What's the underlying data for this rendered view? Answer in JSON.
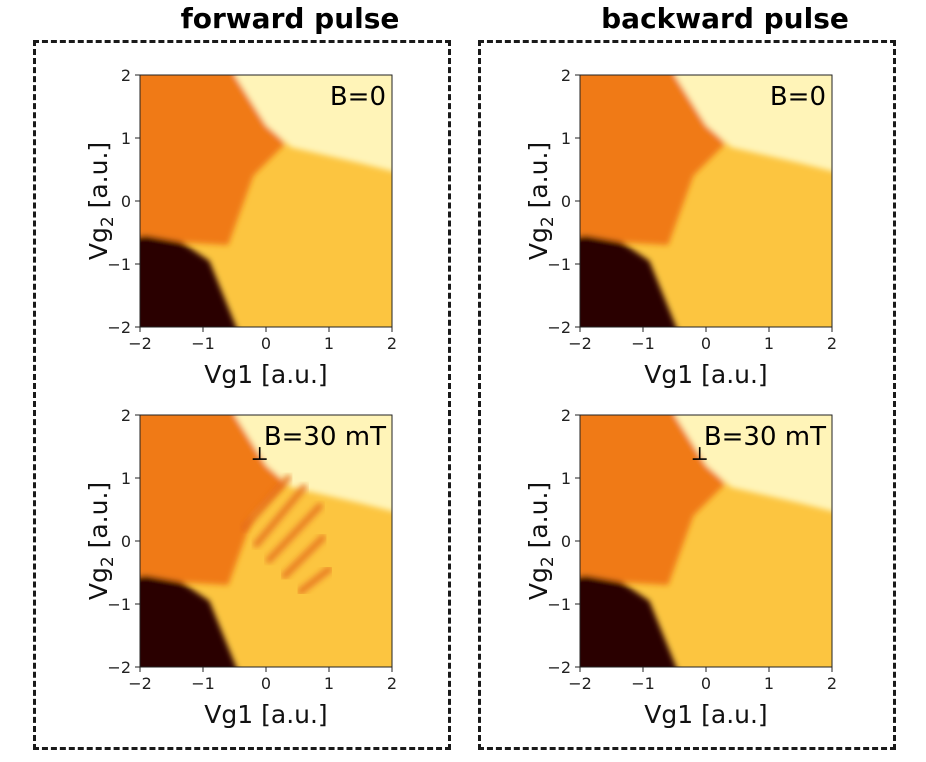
{
  "columns": [
    {
      "title": "forward pulse"
    },
    {
      "title": "backward pulse"
    }
  ],
  "chart_data": [
    {
      "type": "heatmap",
      "column": "forward pulse",
      "annotation": "B=0",
      "xlabel": "Vg1 [a.u.]",
      "ylabel_base": "Vg",
      "ylabel_sub": "2",
      "ylabel_unit": " [a.u.]",
      "xlim": [
        -2,
        2
      ],
      "ylim": [
        -2,
        2
      ],
      "xticks": [
        -2,
        -1,
        0,
        1,
        2
      ],
      "yticks": [
        -2,
        -1,
        0,
        1,
        2
      ],
      "colors": {
        "dark": "#2a0500",
        "orange": "#f07a14",
        "yellow": "#fcc540",
        "light": "#fff4b8"
      },
      "fringes": false
    },
    {
      "type": "heatmap",
      "column": "backward pulse",
      "annotation": "B=0",
      "xlabel": "Vg1 [a.u.]",
      "ylabel_base": "Vg",
      "ylabel_sub": "2",
      "ylabel_unit": " [a.u.]",
      "xlim": [
        -2,
        2
      ],
      "ylim": [
        -2,
        2
      ],
      "xticks": [
        -2,
        -1,
        0,
        1,
        2
      ],
      "yticks": [
        -2,
        -1,
        0,
        1,
        2
      ],
      "colors": {
        "dark": "#2a0500",
        "orange": "#f07a14",
        "yellow": "#fcc540",
        "light": "#fff4b8"
      },
      "fringes": false
    },
    {
      "type": "heatmap",
      "column": "forward pulse",
      "annotation": "B=30 mT",
      "xlabel": "Vg1 [a.u.]",
      "ylabel_base": "Vg",
      "ylabel_sub": "2",
      "ylabel_unit": " [a.u.]",
      "xlim": [
        -2,
        2
      ],
      "ylim": [
        -2,
        2
      ],
      "xticks": [
        -2,
        -1,
        0,
        1,
        2
      ],
      "yticks": [
        -2,
        -1,
        0,
        1,
        2
      ],
      "colors": {
        "dark": "#2a0500",
        "orange": "#f07a14",
        "yellow": "#fcc540",
        "light": "#fff4b8"
      },
      "fringes": true,
      "marker": {
        "x": -0.1,
        "y": 1.3
      }
    },
    {
      "type": "heatmap",
      "column": "backward pulse",
      "annotation": "B=30 mT",
      "xlabel": "Vg1 [a.u.]",
      "ylabel_base": "Vg",
      "ylabel_sub": "2",
      "ylabel_unit": " [a.u.]",
      "xlim": [
        -2,
        2
      ],
      "ylim": [
        -2,
        2
      ],
      "xticks": [
        -2,
        -1,
        0,
        1,
        2
      ],
      "yticks": [
        -2,
        -1,
        0,
        1,
        2
      ],
      "colors": {
        "dark": "#2a0500",
        "orange": "#f07a14",
        "yellow": "#fcc540",
        "light": "#fff4b8"
      },
      "fringes": false,
      "marker": {
        "x": -0.1,
        "y": 1.3
      }
    }
  ]
}
